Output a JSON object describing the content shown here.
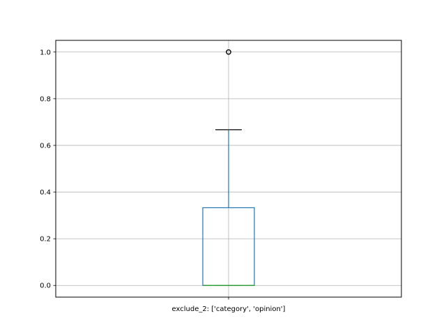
{
  "chart_data": {
    "type": "box",
    "title": "",
    "xlabel": "",
    "ylabel": "",
    "categories": [
      "exclude_2: ['category', 'opinion']"
    ],
    "ylim": [
      -0.05,
      1.05
    ],
    "yticks": [
      0.0,
      0.2,
      0.4,
      0.6,
      0.8,
      1.0
    ],
    "ytick_labels": [
      "0.0",
      "0.2",
      "0.4",
      "0.6",
      "0.8",
      "1.0"
    ],
    "grid": true,
    "boxes": [
      {
        "category": "exclude_2: ['category', 'opinion']",
        "whisker_low": 0.0,
        "q1": 0.0,
        "median": 0.0,
        "q3": 0.333,
        "whisker_high": 0.667,
        "outliers": [
          1.0
        ]
      }
    ],
    "colors": {
      "box": "#1f77b4",
      "median": "#2ca02c",
      "caps": "#000000",
      "grid": "#b0b0b0",
      "outlier": "#000000"
    }
  }
}
